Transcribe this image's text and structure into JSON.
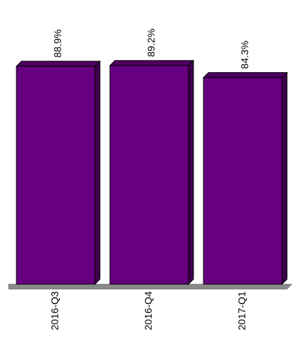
{
  "chart_data": {
    "type": "bar",
    "categories": [
      "2016-Q3",
      "2016-Q4",
      "2017-Q1"
    ],
    "values": [
      88.9,
      89.2,
      84.3
    ],
    "data_labels": [
      "88.9%",
      "89.2%",
      "84.3%"
    ],
    "ylim": [
      0,
      100
    ],
    "grid": false,
    "legend": "none",
    "bar_color": "#660080",
    "bar_side_color": "#3d004d",
    "bar_top_color": "#4f0063",
    "floor_color": "#8a8a8a"
  }
}
